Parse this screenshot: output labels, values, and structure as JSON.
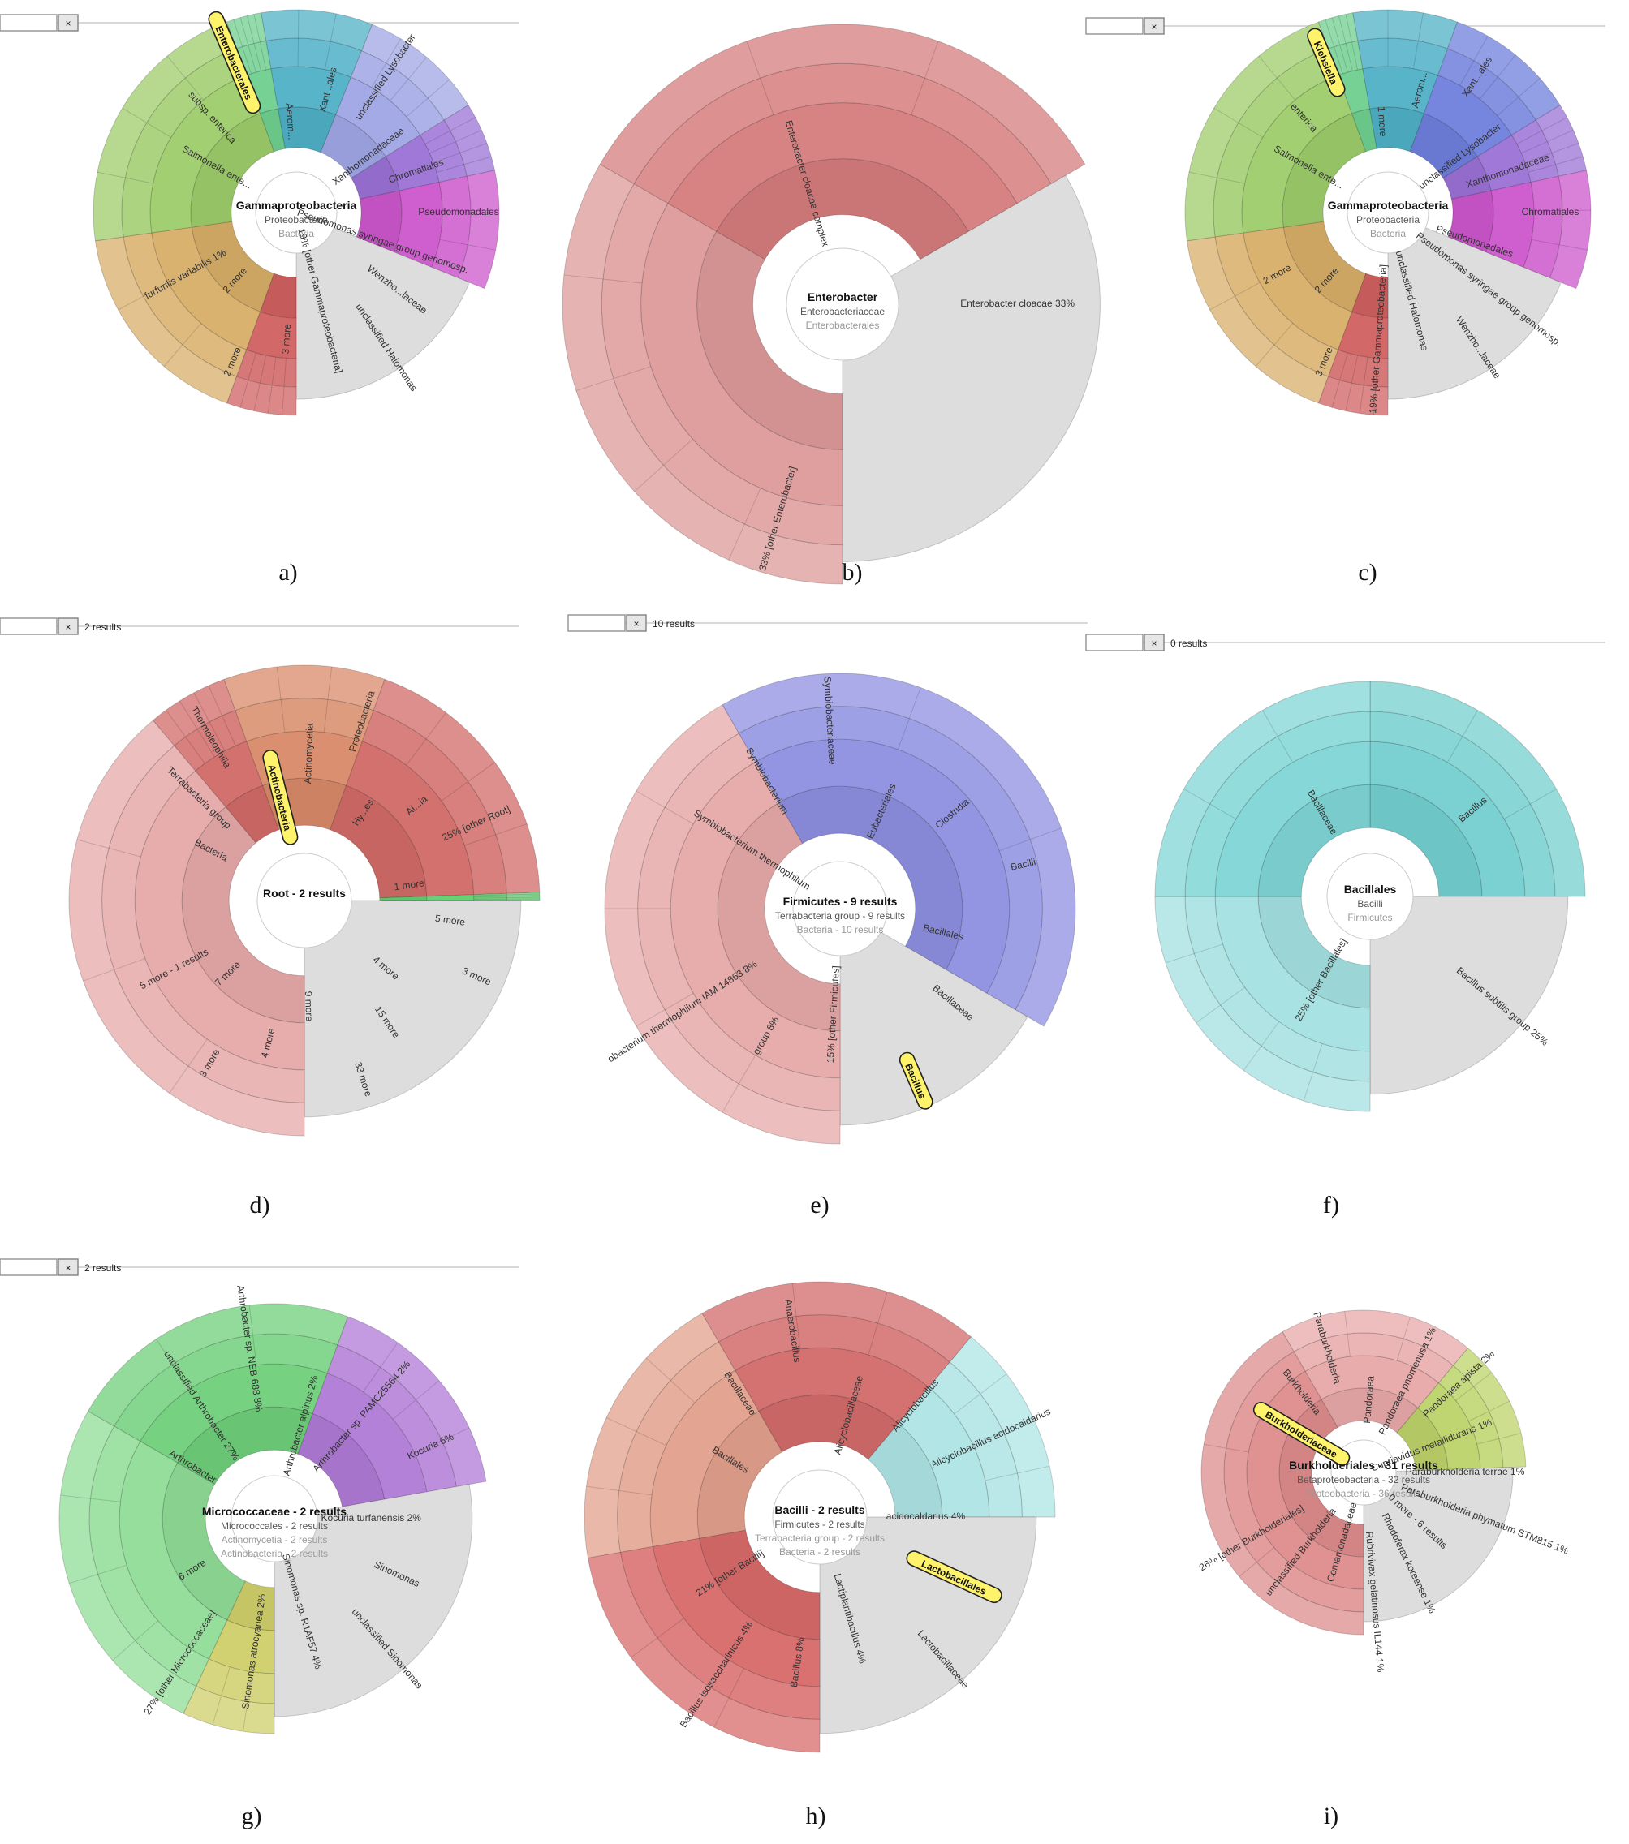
{
  "panels": [
    {
      "id": "a",
      "caption": "a)",
      "search": {
        "results": ""
      },
      "center": [
        "Gammaproteobacteria",
        "Proteobacteria",
        "Bacteria"
      ],
      "sectors": [
        {
          "color": "#4fb0c6",
          "a0": -10,
          "a1": 22
        },
        {
          "color": "#9fa6e4",
          "a0": 22,
          "a1": 58
        },
        {
          "color": "#9b72d6",
          "a0": 58,
          "a1": 78
        },
        {
          "color": "#cc55cc",
          "a0": 78,
          "a1": 112
        },
        {
          "color": "#dddddd",
          "a0": 112,
          "a1": 180
        },
        {
          "color": "#d06060",
          "a0": 180,
          "a1": 200
        },
        {
          "color": "#d8ae68",
          "a0": 200,
          "a1": 262
        },
        {
          "color": "#9dcc6a",
          "a0": 262,
          "a1": 340
        },
        {
          "color": "#6fcf8f",
          "a0": 340,
          "a1": 350
        }
      ],
      "labels": [
        "Salmonella ente...",
        "subsp. enterica",
        "Enterobacterales",
        "Aerom...",
        "Xant...ales",
        "unclassified Lysobacter",
        "Xanthomonadaceae",
        "Chromatiales",
        "Pseudomonadales",
        "Pseudomonas syringae group genomosp.",
        "Wenzho...laceae",
        "unclassified Halomonas",
        "19%  [other Gammaproteobacteria]",
        "3 more",
        "2 more",
        "2 more",
        "furfurilis variabilis  1%"
      ],
      "highlight": "Enterobacterales"
    },
    {
      "id": "b",
      "caption": "b)",
      "search": null,
      "center": [
        "Enterobacter",
        "Enterobacteriaceae",
        "Enterobacterales"
      ],
      "sectors": [
        {
          "color": "#d67c7c",
          "a0": -60,
          "a1": 60
        },
        {
          "color": "#dddddd",
          "a0": 60,
          "a1": 180
        },
        {
          "color": "#de9a9a",
          "a0": 180,
          "a1": 300
        }
      ],
      "labels": [
        "Enterobacter cloacae complex",
        "Enterobacter cloacae  33%",
        "33%  [other Enterobacter]"
      ],
      "highlight": ""
    },
    {
      "id": "c",
      "caption": "c)",
      "search": {
        "results": ""
      },
      "center": [
        "Gammaproteobacteria",
        "Proteobacteria",
        "Bacteria"
      ],
      "sectors": [
        {
          "color": "#4fb0c6",
          "a0": -10,
          "a1": 20
        },
        {
          "color": "#6f7fdc",
          "a0": 20,
          "a1": 58
        },
        {
          "color": "#9b72d6",
          "a0": 58,
          "a1": 78
        },
        {
          "color": "#cc55cc",
          "a0": 78,
          "a1": 112
        },
        {
          "color": "#dddddd",
          "a0": 112,
          "a1": 180
        },
        {
          "color": "#d06060",
          "a0": 180,
          "a1": 200
        },
        {
          "color": "#d8ae68",
          "a0": 200,
          "a1": 262
        },
        {
          "color": "#9dcc6a",
          "a0": 262,
          "a1": 340
        },
        {
          "color": "#6fcf8f",
          "a0": 340,
          "a1": 350
        }
      ],
      "labels": [
        "Salmonella ente...",
        "enterica",
        "Klebsiella",
        "1 more",
        "Aerom...",
        "Xant...ales",
        "unclassified Lysobacter",
        "Xanthomonadaceae",
        "Chromatiales",
        "Pseudomonadales",
        "Pseudomonas syringae group genomosp.",
        "Wenzho...laceae",
        "unclassified Halomonas",
        "19%  [other Gammaproteobacteria]",
        "3 more",
        "2 more",
        "2 more"
      ],
      "highlight": "Klebsiella"
    },
    {
      "id": "d",
      "caption": "d)",
      "search": {
        "results": "2 results"
      },
      "center": [
        "Root - 2 results",
        "",
        ""
      ],
      "sectors": [
        {
          "color": "#d88a68",
          "a0": -20,
          "a1": 20
        },
        {
          "color": "#d06a66",
          "a0": 20,
          "a1": 88
        },
        {
          "color": "#5fcf6f",
          "a0": 88,
          "a1": 90
        },
        {
          "color": "#dddddd",
          "a0": 90,
          "a1": 180
        },
        {
          "color": "#e6a8a8",
          "a0": 180,
          "a1": 320
        },
        {
          "color": "#d06a66",
          "a0": 320,
          "a1": 340
        }
      ],
      "labels": [
        "Bacteria",
        "Terrabacteria group",
        "Thermoleophilia",
        "Actinobacteria",
        "Actinomycetia",
        "Proteobacteria",
        "Hy...es",
        "Al...ia",
        "25%  [other Root]",
        "1 more",
        "5 more",
        "3 more",
        "4 more",
        "15 more",
        "33 more",
        "9 more",
        "4 more",
        "3 more",
        "7 more",
        "5 more - 1 results"
      ],
      "highlight": "Actinobacteria"
    },
    {
      "id": "e",
      "caption": "e)",
      "search": {
        "results": "10 results"
      },
      "center": [
        "Firmicutes - 9 results",
        "Terrabacteria group - 9 results",
        "Bacteria - 10 results"
      ],
      "sectors": [
        {
          "color": "#8d8fe0",
          "a0": -30,
          "a1": 120
        },
        {
          "color": "#dddddd",
          "a0": 120,
          "a1": 180
        },
        {
          "color": "#e6a8a8",
          "a0": 180,
          "a1": 330
        }
      ],
      "labels": [
        "Symbiobacterium thermophilum",
        "Symbiobacterium",
        "Symbiobacteriaceae",
        "Eubacteriales",
        "Clostridia",
        "Bacilli",
        "Bacillales",
        "Bacillaceae",
        "Bacillus",
        "15%  [other Firmicutes]",
        "group  8%",
        "obacterium thermophilum IAM 14863  8%"
      ],
      "highlight": "Bacillus"
    },
    {
      "id": "f",
      "caption": "f)",
      "search": {
        "results": "0 results"
      },
      "center": [
        "Bacillales",
        "Bacilli",
        "Firmicutes"
      ],
      "sectors": [
        {
          "color": "#74cfcf",
          "a0": 0,
          "a1": 90
        },
        {
          "color": "#dddddd",
          "a0": 90,
          "a1": 180
        },
        {
          "color": "#a3e0e0",
          "a0": 180,
          "a1": 270
        },
        {
          "color": "#80d6d6",
          "a0": 270,
          "a1": 360
        }
      ],
      "labels": [
        "Bacillaceae",
        "Bacillus",
        "Bacillus subtilis group  25%",
        "25%  [other Bacillales]"
      ],
      "highlight": ""
    },
    {
      "id": "g",
      "caption": "g)",
      "search": {
        "results": "2 results"
      },
      "center": [
        "Micrococcaceae - 2 results",
        "Micrococcales - 2 results",
        "Actinomycetia - 2 results",
        "Actinobacteria - 2 results"
      ],
      "sectors": [
        {
          "color": "#6fcf7a",
          "a0": -60,
          "a1": 20
        },
        {
          "color": "#b07ad6",
          "a0": 20,
          "a1": 80
        },
        {
          "color": "#dddddd",
          "a0": 80,
          "a1": 180
        },
        {
          "color": "#cfcf6a",
          "a0": 180,
          "a1": 205
        },
        {
          "color": "#8fdc96",
          "a0": 205,
          "a1": 300
        }
      ],
      "labels": [
        "Arthrobacter",
        "unclassified Arthrobacter  27%",
        "Arthrobacter sp. NEB 688  8%",
        "Arthrobacter alpinus  2%",
        "Arthrobacter sp. PAMC25564  2%",
        "Kocuria  6%",
        "Kocuria turfanensis  2%",
        "Sinomonas",
        "unclassified Sinomonas",
        "Sinomonas sp. R1AF57  4%",
        "Sinomonas atrocyanea  2%",
        "27%  [other Micrococcaceae]",
        "6 more"
      ],
      "highlight": ""
    },
    {
      "id": "h",
      "caption": "h)",
      "search": null,
      "center": [
        "Bacilli - 2 results",
        "Firmicutes - 2 results",
        "Terrabacteria group - 2 results",
        "Bacteria - 2 results"
      ],
      "sectors": [
        {
          "color": "#d26a6a",
          "a0": -30,
          "a1": 40
        },
        {
          "color": "#aee4e4",
          "a0": 40,
          "a1": 90
        },
        {
          "color": "#dddddd",
          "a0": 90,
          "a1": 180
        },
        {
          "color": "#d86a6a",
          "a0": 180,
          "a1": 260
        },
        {
          "color": "#e2a08c",
          "a0": 260,
          "a1": 330
        }
      ],
      "labels": [
        "Bacillales",
        "Bacillaceae",
        "Anaerobacillus",
        "Alicyclobacillaceae",
        "Alicyclobacillus",
        "Alicyclobacillus acidocaldarius",
        "acidocaldarius  4%",
        "Lactobacillales",
        "Lactobacillaceae",
        "Lactiplantibacillus  4%",
        "Bacillus  8%",
        "Bacillus isosaccharinicus  4%",
        "21%  [other Bacilli]"
      ],
      "highlight": "Lactobacillales"
    },
    {
      "id": "i",
      "caption": "i)",
      "search": null,
      "center": [
        "Burkholderiales - 31 results",
        "Betaproteobacteria - 32 results",
        "Proteobacteria - 36 results"
      ],
      "sectors": [
        {
          "color": "#e8a8a8",
          "a0": -30,
          "a1": 40
        },
        {
          "color": "#bcd36a",
          "a0": 40,
          "a1": 88
        },
        {
          "color": "#dddddd",
          "a0": 88,
          "a1": 180
        },
        {
          "color": "#de8c8c",
          "a0": 180,
          "a1": 330
        }
      ],
      "labels": [
        "Burkholderiaceae",
        "Burkholderia",
        "Paraburkholderia",
        "Pandoraea",
        "Pandoraea pnomenusa  1%",
        "Pandoraea apista  2%",
        "Cupriavidus metallidurans  1%",
        "Paraburkholderia terrae  1%",
        "Paraburkholderia phymatum STM815  1%",
        "0 more - 6 results",
        "Rhodoferax koreense  1%",
        "Rubrivivax gelatinosus IL144  1%",
        "Comamonadaceae",
        "unclassified Burkholderia",
        "26%  [other Burkholderiales]"
      ],
      "highlight": "Burkholderiaceae"
    }
  ]
}
